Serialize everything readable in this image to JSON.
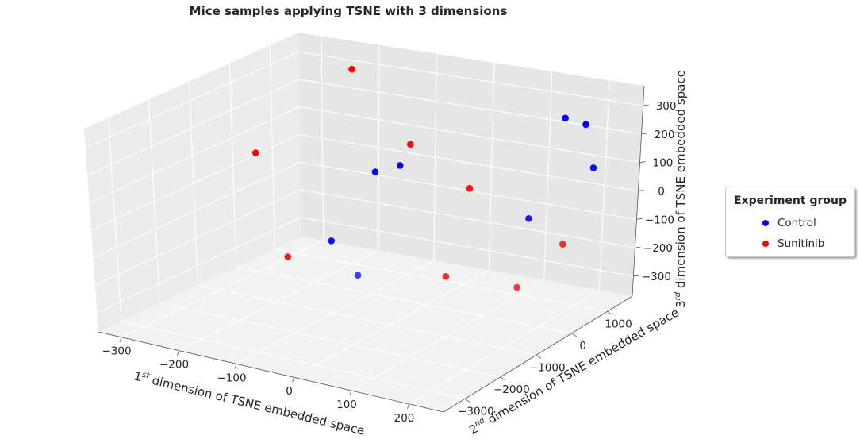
{
  "chart_data": {
    "type": "scatter",
    "projection": "3d",
    "title": "Mice samples applying TSNE with 3 dimensions",
    "xlabel": {
      "prefix": "1",
      "sup": "st",
      "suffix": " dimension of TSNE embedded space"
    },
    "ylabel": {
      "prefix": "2",
      "sup": "nd",
      "suffix": " dimension of TSNE embedded space"
    },
    "zlabel": {
      "prefix": "3",
      "sup": "rd",
      "suffix": " dimension of TSNE embedded space"
    },
    "x_ticks": [
      -300,
      -200,
      -100,
      0,
      100,
      200
    ],
    "x_tick_labels": [
      "−300",
      "−200",
      "−100",
      "0",
      "100",
      "200"
    ],
    "y_ticks": [
      -3000,
      -2000,
      -1000,
      0,
      1000
    ],
    "y_tick_labels": [
      "−3000",
      "−2000",
      "−1000",
      "0",
      "1000"
    ],
    "z_ticks": [
      -300,
      -200,
      -100,
      0,
      100,
      200,
      300
    ],
    "z_tick_labels": [
      "−300",
      "−200",
      "−100",
      "0",
      "100",
      "200",
      "300"
    ],
    "xlim": [
      -340,
      260
    ],
    "ylim": [
      -3600,
      1700
    ],
    "zlim": [
      -370,
      370
    ],
    "grid": true,
    "legend": {
      "title": "Experiment group",
      "placement": "right",
      "entries": [
        {
          "name": "Control",
          "color": "#0000ff"
        },
        {
          "name": "Sunitinib",
          "color": "#ff0000"
        }
      ]
    },
    "series": [
      {
        "name": "Control",
        "color": "#0000ff",
        "points": [
          {
            "x": 150,
            "y": 1300,
            "z": 250
          },
          {
            "x": 180,
            "y": 1400,
            "z": 230
          },
          {
            "x": 220,
            "y": 1000,
            "z": 120
          },
          {
            "x": -90,
            "y": 600,
            "z": 50
          },
          {
            "x": -120,
            "y": 400,
            "z": 30
          },
          {
            "x": 160,
            "y": 200,
            "z": -20
          },
          {
            "x": -150,
            "y": -300,
            "z": -180
          },
          {
            "x": -20,
            "y": -1600,
            "z": -160
          }
        ]
      },
      {
        "name": "Sunitinib",
        "color": "#ff0000",
        "points": [
          {
            "x": -200,
            "y": 1000,
            "z": 330
          },
          {
            "x": -60,
            "y": 400,
            "z": 150
          },
          {
            "x": 50,
            "y": 300,
            "z": 40
          },
          {
            "x": -300,
            "y": 0,
            "z": 60
          },
          {
            "x": 250,
            "y": -300,
            "z": -40
          },
          {
            "x": 200,
            "y": -700,
            "z": -180
          },
          {
            "x": 70,
            "y": -600,
            "z": -200
          },
          {
            "x": -200,
            "y": -700,
            "z": -230
          }
        ]
      }
    ]
  }
}
